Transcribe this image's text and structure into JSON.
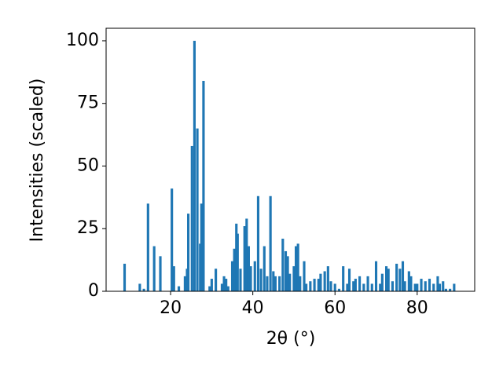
{
  "chart_data": {
    "type": "bar",
    "xlabel": "2θ (°)",
    "ylabel": "Intensities (scaled)",
    "x": [
      8.8,
      12.5,
      13.5,
      14.5,
      16,
      17.5,
      20.3,
      20.8,
      22,
      23.5,
      24,
      24.3,
      25.2,
      25.8,
      26.5,
      27.2,
      27.5,
      28,
      29.5,
      30,
      31,
      32.5,
      33,
      33.5,
      34,
      35,
      35.5,
      36,
      36.3,
      37,
      38,
      38.5,
      39,
      39.5,
      40.5,
      41.3,
      42,
      42.8,
      43.5,
      44.3,
      45,
      45.5,
      46.5,
      47.3,
      48,
      48.5,
      49,
      50,
      50.5,
      51,
      51.5,
      52.5,
      53,
      54,
      55,
      56,
      56.5,
      57.5,
      58.3,
      59,
      60,
      61,
      62,
      63,
      63.5,
      64.5,
      65,
      66,
      67,
      68,
      69,
      70,
      71,
      71.5,
      72.5,
      73,
      74,
      75,
      75.8,
      76.5,
      77,
      78,
      78.5,
      79.5,
      80,
      81,
      82,
      83,
      84,
      85,
      85.5,
      86.3,
      87,
      88,
      89
    ],
    "values": [
      11,
      3,
      1,
      35,
      18,
      14,
      41,
      10,
      2,
      6,
      9,
      31,
      58,
      100,
      65,
      19,
      35,
      84,
      2,
      5,
      9,
      3,
      6,
      5,
      2,
      12,
      17,
      27,
      23,
      9,
      26,
      29,
      18,
      10,
      12,
      38,
      9,
      18,
      6,
      38,
      8,
      6,
      6,
      21,
      16,
      14,
      7,
      10,
      18,
      19,
      6,
      12,
      3,
      4,
      5,
      5,
      7,
      8,
      10,
      4,
      3,
      1,
      10,
      3,
      9,
      4,
      5,
      6,
      3,
      6,
      3,
      12,
      3,
      7,
      10,
      9,
      4,
      11,
      9,
      12,
      4,
      8,
      6,
      3,
      3,
      5,
      4,
      5,
      3,
      6,
      3,
      4,
      1,
      1,
      3
    ],
    "color": "#1f77b4",
    "xlim": [
      4.3,
      94
    ],
    "ylim": [
      0,
      105
    ],
    "xticks": [
      20,
      40,
      60,
      80
    ],
    "yticks": [
      0,
      25,
      50,
      75,
      100
    ]
  }
}
